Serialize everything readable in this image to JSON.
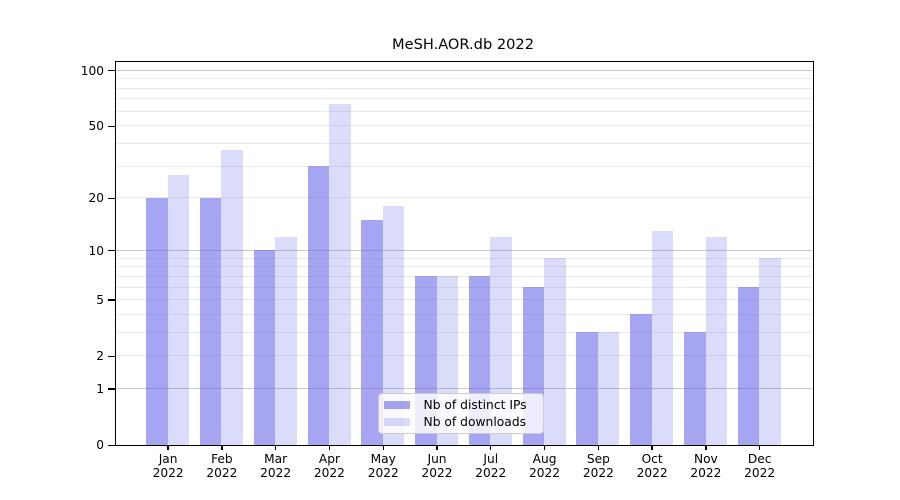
{
  "chart_data": {
    "type": "bar",
    "title": "MeSH.AOR.db 2022",
    "categories": [
      "Jan",
      "Feb",
      "Mar",
      "Apr",
      "May",
      "Jun",
      "Jul",
      "Aug",
      "Sep",
      "Oct",
      "Nov",
      "Dec"
    ],
    "x_year": "2022",
    "series": [
      {
        "name": "Nb of distinct IPs",
        "color": "rgba(91,91,230,0.55)",
        "values": [
          20,
          20,
          10,
          30,
          15,
          7,
          7,
          6,
          3,
          4,
          3,
          6
        ]
      },
      {
        "name": "Nb of downloads",
        "color": "rgba(91,91,230,0.22)",
        "values": [
          27,
          37,
          12,
          66,
          18,
          7,
          12,
          9,
          3,
          13,
          12,
          9
        ]
      }
    ],
    "y_scale": "log10(1+y)",
    "y_ticks": [
      0,
      1,
      2,
      5,
      10,
      20,
      50,
      100
    ],
    "major_gridlines": [
      1,
      10,
      100
    ],
    "minor_gridlines": [
      2,
      3,
      4,
      5,
      6,
      7,
      8,
      9,
      20,
      30,
      40,
      50,
      60,
      70,
      80,
      90
    ],
    "ylim": [
      0,
      110
    ],
    "legend_position": "lower center",
    "colors": {
      "major_grid": "#c9c9c9",
      "minor_grid": "#eaeaea",
      "axis": "#000000",
      "text": "#000000",
      "legend_border": "#cccccc",
      "legend_bg": "rgba(255,255,255,0.8)"
    }
  }
}
